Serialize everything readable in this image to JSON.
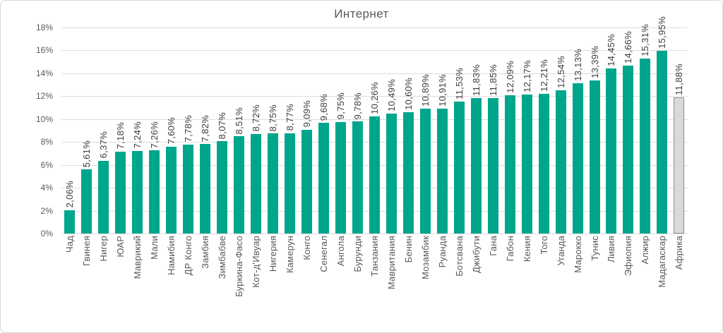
{
  "card": {
    "title": "Интернет"
  },
  "chart_data": {
    "type": "bar",
    "title": "Интернет",
    "xlabel": "",
    "ylabel": "",
    "ylim": [
      0,
      18
    ],
    "ytick_step": 2,
    "yticks": [
      "0%",
      "2%",
      "4%",
      "6%",
      "8%",
      "10%",
      "12%",
      "14%",
      "16%",
      "18%"
    ],
    "grid": true,
    "legend_position": "none",
    "bar_color": "#00a68c",
    "highlight_category": "Африка",
    "highlight_fill": "#d9d9d9",
    "highlight_border": "#8c8c8c",
    "categories": [
      "Чад",
      "Гвинея",
      "Нигер",
      "ЮАР",
      "Маврикий",
      "Мали",
      "Намибия",
      "ДР Конго",
      "Замбия",
      "Зимбабве",
      "Буркина-Фасо",
      "Кот-д'Ивуар",
      "Нигерия",
      "Камерун",
      "Конго",
      "Сенегал",
      "Ангола",
      "Бурунди",
      "Танзания",
      "Мавритания",
      "Бенин",
      "Мозамбик",
      "Руанда",
      "Ботсвана",
      "Джибути",
      "Гана",
      "Габон",
      "Кения",
      "Того",
      "Уганда",
      "Марокко",
      "Тунис",
      "Ливия",
      "Эфиопия",
      "Алжир",
      "Мадагаскар",
      "Африка"
    ],
    "values": [
      2.06,
      5.61,
      6.37,
      7.18,
      7.24,
      7.26,
      7.6,
      7.78,
      7.82,
      8.07,
      8.51,
      8.72,
      8.75,
      8.77,
      9.09,
      9.68,
      9.75,
      9.78,
      10.26,
      10.49,
      10.6,
      10.89,
      10.91,
      11.53,
      11.83,
      11.85,
      12.09,
      12.17,
      12.21,
      12.54,
      13.13,
      13.39,
      14.45,
      14.66,
      15.31,
      15.95,
      11.88
    ],
    "value_labels": [
      "2,06%",
      "5,61%",
      "6,37%",
      "7,18%",
      "7,24%",
      "7,26%",
      "7,60%",
      "7,78%",
      "7,82%",
      "8,07%",
      "8,51%",
      "8,72%",
      "8,75%",
      "8,77%",
      "9,09%",
      "9,68%",
      "9,75%",
      "9,78%",
      "10,26%",
      "10,49%",
      "10,60%",
      "10,89%",
      "10,91%",
      "11,53%",
      "11,83%",
      "11,85%",
      "12,09%",
      "12,17%",
      "12,21%",
      "12,54%",
      "13,13%",
      "13,39%",
      "14,45%",
      "14,66%",
      "15,31%",
      "15,95%",
      "11,88%"
    ]
  }
}
